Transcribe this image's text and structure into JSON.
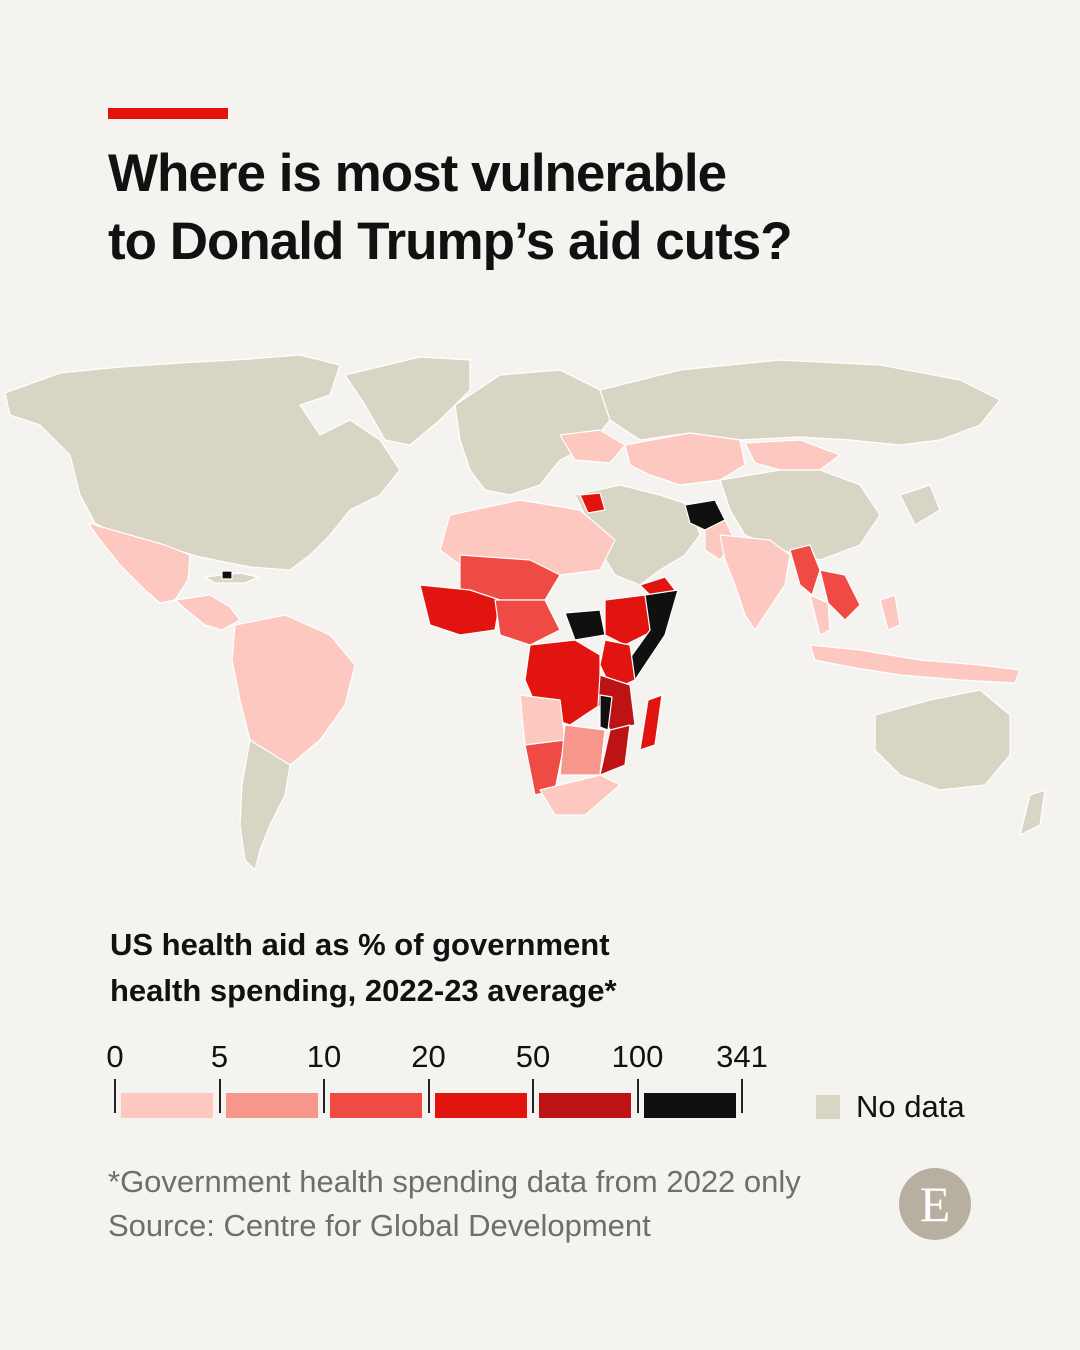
{
  "header": {
    "title_line1": "Where is most vulnerable",
    "title_line2": "to Donald Trump’s aid cuts?",
    "accent_color": "#e3120b"
  },
  "legend": {
    "title_line1": "US health aid as % of government",
    "title_line2": "health spending, 2022-23 average*",
    "breaks": [
      "0",
      "5",
      "10",
      "20",
      "50",
      "100",
      "341"
    ],
    "colors": [
      "#fcc8c0",
      "#f7978c",
      "#f04a44",
      "#e1140f",
      "#bd1315",
      "#101010"
    ],
    "no_data_label": "No data",
    "no_data_color": "#d8d5c4"
  },
  "footer": {
    "note": "*Government health spending data from 2022 only",
    "source": "Source: Centre for Global Development"
  },
  "logo": {
    "letter": "E",
    "icon": "economist-logo-icon"
  },
  "map_data": {
    "type": "choropleth",
    "metric": "US health aid as % of government health spending",
    "countries": [
      {
        "name": "Afghanistan",
        "class": 6
      },
      {
        "name": "South Sudan",
        "class": 6
      },
      {
        "name": "Somalia",
        "class": 6
      },
      {
        "name": "Haiti",
        "class": 6
      },
      {
        "name": "Malawi",
        "class": 6
      },
      {
        "name": "Mozambique",
        "class": 5
      },
      {
        "name": "Tanzania",
        "class": 5
      },
      {
        "name": "Uganda",
        "class": 5
      },
      {
        "name": "DR Congo",
        "class": 4
      },
      {
        "name": "Kenya",
        "class": 4
      },
      {
        "name": "Ethiopia",
        "class": 4
      },
      {
        "name": "Zambia",
        "class": 4
      },
      {
        "name": "Zimbabwe",
        "class": 4
      },
      {
        "name": "Liberia",
        "class": 4
      },
      {
        "name": "Sierra Leone",
        "class": 4
      },
      {
        "name": "Guinea",
        "class": 4
      },
      {
        "name": "Central African Republic",
        "class": 4
      },
      {
        "name": "Burundi",
        "class": 4
      },
      {
        "name": "Rwanda",
        "class": 4
      },
      {
        "name": "Madagascar",
        "class": 4
      },
      {
        "name": "Yemen",
        "class": 4
      },
      {
        "name": "Syria",
        "class": 4
      },
      {
        "name": "Mali",
        "class": 3
      },
      {
        "name": "Niger",
        "class": 3
      },
      {
        "name": "Nigeria",
        "class": 3
      },
      {
        "name": "Namibia",
        "class": 3
      },
      {
        "name": "Myanmar",
        "class": 3
      },
      {
        "name": "Laos",
        "class": 3
      },
      {
        "name": "Cambodia",
        "class": 3
      },
      {
        "name": "Burkina Faso",
        "class": 3
      },
      {
        "name": "Senegal",
        "class": 3
      },
      {
        "name": "Cameroon",
        "class": 3
      },
      {
        "name": "Eswatini",
        "class": 3
      },
      {
        "name": "Angola",
        "class": 1
      },
      {
        "name": "Botswana",
        "class": 2
      },
      {
        "name": "South Africa",
        "class": 1
      },
      {
        "name": "Egypt",
        "class": 1
      },
      {
        "name": "Algeria",
        "class": 1
      },
      {
        "name": "Libya",
        "class": 1
      },
      {
        "name": "Mexico",
        "class": 1
      },
      {
        "name": "Brazil",
        "class": 1
      },
      {
        "name": "Peru",
        "class": 1
      },
      {
        "name": "Colombia",
        "class": 1
      },
      {
        "name": "India",
        "class": 1
      },
      {
        "name": "Kazakhstan",
        "class": 1
      },
      {
        "name": "Mongolia",
        "class": 1
      },
      {
        "name": "Indonesia",
        "class": 1
      },
      {
        "name": "Philippines",
        "class": 1
      },
      {
        "name": "Ukraine",
        "class": 1
      },
      {
        "name": "Pakistan",
        "class": 1
      }
    ]
  }
}
